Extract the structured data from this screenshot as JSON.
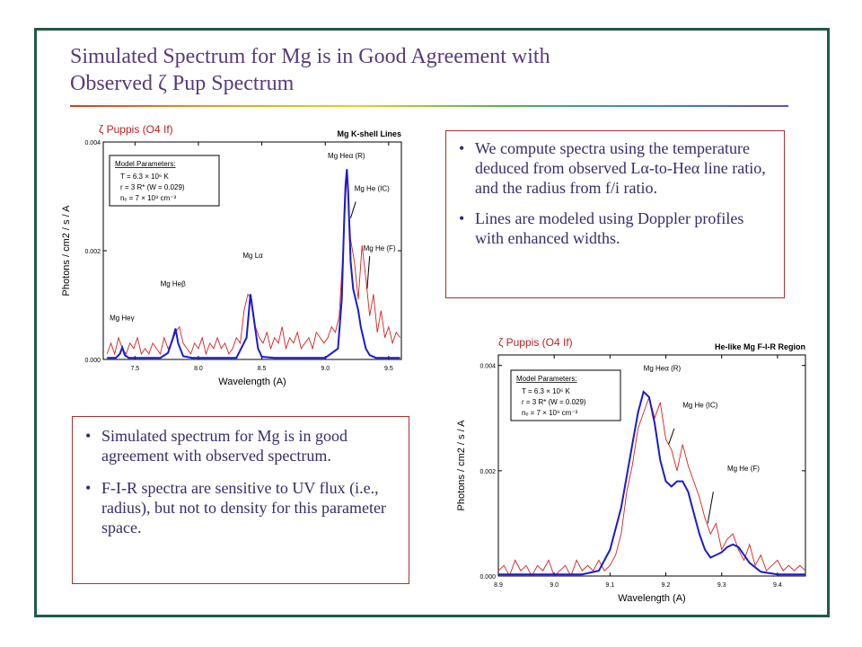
{
  "title": {
    "line1": "Simulated Spectrum for Mg is in Good Agreement with",
    "line2": "Observed ζ Pup Spectrum"
  },
  "text_box_1": {
    "bullets": [
      "We compute spectra using the temperature deduced from observed Lα-to-Heα line ratio, and the radius from f/i ratio.",
      "Lines are modeled using Doppler profiles with enhanced widths."
    ]
  },
  "text_box_2": {
    "bullets": [
      "Simulated spectrum for Mg is in good agreement with observed spectrum.",
      "F-I-R spectra are sensitive to UV flux (i.e., radius), but not to density for this parameter space."
    ]
  },
  "colors": {
    "frame": "#1f5a4a",
    "title": "#5a3a7a",
    "box_border": "#a83232",
    "observed": "#d42020",
    "simulated": "#1a1ad4",
    "annotation": "#d42020"
  },
  "chart_data": [
    {
      "type": "line",
      "title": "Mg K-shell Lines",
      "source_label": "ζ Puppis (O4 If)",
      "xlabel": "Wavelength (A)",
      "ylabel": "Photons / cm2 / s / A",
      "xlim": [
        7.25,
        9.6
      ],
      "ylim": [
        0,
        0.004
      ],
      "xticks": [
        "7.5",
        "8.0",
        "8.5",
        "9.0",
        "9.5"
      ],
      "yticks": [
        "0.000",
        "0.002",
        "0.004"
      ],
      "model_parameters": {
        "heading": "Model Parameters:",
        "lines": [
          "T = 6.3 × 10⁶ K",
          "r = 3 R*  (W = 0.029)",
          "nₑ = 7 × 10⁹ cm⁻³"
        ]
      },
      "line_labels": [
        {
          "text": "Mg Heγ",
          "x": 7.3,
          "y": 0.00072
        },
        {
          "text": "Mg Heβ",
          "x": 7.7,
          "y": 0.00135
        },
        {
          "text": "Mg Lα",
          "x": 8.35,
          "y": 0.00187
        },
        {
          "text": "Mg Heα (R)",
          "x": 9.02,
          "y": 0.0037
        },
        {
          "text": "Mg He (IC)",
          "x": 9.23,
          "y": 0.0031
        },
        {
          "text": "Mg He (F)",
          "x": 9.3,
          "y": 0.002
        }
      ],
      "series": [
        {
          "name": "observed",
          "x": [
            7.28,
            7.31,
            7.34,
            7.37,
            7.4,
            7.43,
            7.46,
            7.49,
            7.52,
            7.55,
            7.58,
            7.61,
            7.64,
            7.67,
            7.7,
            7.73,
            7.76,
            7.79,
            7.82,
            7.85,
            7.88,
            7.91,
            7.94,
            7.97,
            8.0,
            8.03,
            8.06,
            8.09,
            8.12,
            8.15,
            8.18,
            8.21,
            8.24,
            8.27,
            8.3,
            8.33,
            8.36,
            8.39,
            8.42,
            8.45,
            8.48,
            8.51,
            8.54,
            8.57,
            8.6,
            8.63,
            8.66,
            8.69,
            8.72,
            8.75,
            8.78,
            8.81,
            8.84,
            8.87,
            8.9,
            8.93,
            8.96,
            8.99,
            9.02,
            9.05,
            9.08,
            9.11,
            9.14,
            9.17,
            9.2,
            9.23,
            9.26,
            9.29,
            9.32,
            9.35,
            9.38,
            9.41,
            9.44,
            9.47,
            9.5,
            9.53,
            9.56,
            9.59
          ],
          "y": [
            0.0001,
            0.0003,
            0.0001,
            0.0004,
            0.0002,
            0.0001,
            0.0003,
            0.0002,
            0.0004,
            0.0001,
            0.0002,
            0.0001,
            0.0003,
            0.0002,
            0.0001,
            0.0004,
            0.0002,
            0.0003,
            0.0005,
            0.0006,
            0.0003,
            0.0002,
            0.0001,
            0.0003,
            0.0002,
            0.0004,
            0.0001,
            0.0003,
            0.0002,
            0.0004,
            0.0002,
            0.0003,
            0.0001,
            0.0002,
            0.0004,
            0.0003,
            0.0009,
            0.0012,
            0.0011,
            0.0006,
            0.0004,
            0.0003,
            0.0005,
            0.0002,
            0.0004,
            0.0003,
            0.0006,
            0.0002,
            0.0004,
            0.0003,
            0.0005,
            0.0002,
            0.0003,
            0.0004,
            0.0002,
            0.0005,
            0.0004,
            0.0003,
            0.0004,
            0.0006,
            0.0005,
            0.0008,
            0.002,
            0.0034,
            0.0022,
            0.0018,
            0.0011,
            0.0021,
            0.0015,
            0.0008,
            0.0012,
            0.0005,
            0.0009,
            0.0004,
            0.0006,
            0.0003,
            0.0005,
            0.0004
          ]
        },
        {
          "name": "simulated",
          "x": [
            7.28,
            7.35,
            7.38,
            7.4,
            7.42,
            7.45,
            7.7,
            7.76,
            7.8,
            7.82,
            7.84,
            7.88,
            7.95,
            8.3,
            8.38,
            8.41,
            8.44,
            8.47,
            8.5,
            8.6,
            9.0,
            9.1,
            9.13,
            9.15,
            9.16,
            9.17,
            9.18,
            9.2,
            9.22,
            9.23,
            9.24,
            9.26,
            9.28,
            9.3,
            9.32,
            9.35,
            9.4,
            9.5,
            9.59
          ],
          "y": [
            3e-05,
            3e-05,
            0.0001,
            0.00022,
            8e-05,
            3e-05,
            3e-05,
            0.00012,
            0.0004,
            0.00057,
            0.0003,
            6e-05,
            3e-05,
            3e-05,
            0.0004,
            0.0012,
            0.0007,
            0.0002,
            5e-05,
            3e-05,
            3e-05,
            0.0002,
            0.0011,
            0.0026,
            0.0032,
            0.0035,
            0.0031,
            0.0018,
            0.0013,
            0.0012,
            0.0011,
            0.0009,
            0.0006,
            0.0004,
            0.0002,
            8e-05,
            3e-05,
            3e-05,
            3e-05
          ]
        }
      ]
    },
    {
      "type": "line",
      "title": "He-like Mg F-I-R Region",
      "source_label": "ζ Puppis (O4 If)",
      "xlabel": "Wavelength (A)",
      "ylabel": "Photons / cm2 / s / A",
      "xlim": [
        8.9,
        9.45
      ],
      "ylim": [
        0,
        0.0042
      ],
      "xticks": [
        "8.9",
        "9.0",
        "9.1",
        "9.2",
        "9.3",
        "9.4"
      ],
      "yticks": [
        "0.000",
        "0.002",
        "0.004"
      ],
      "model_parameters": {
        "heading": "Model Parameters:",
        "lines": [
          "T = 6.3 × 10⁶ K",
          "r = 3 R*  (W = 0.029)",
          "nₑ = 7 × 10⁹ cm⁻³"
        ]
      },
      "line_labels": [
        {
          "text": "Mg Heα (R)",
          "x": 9.16,
          "y": 0.0039
        },
        {
          "text": "Mg He (IC)",
          "x": 9.23,
          "y": 0.0032
        },
        {
          "text": "Mg He (F)",
          "x": 9.31,
          "y": 0.002
        }
      ],
      "series": [
        {
          "name": "observed",
          "x": [
            8.9,
            8.91,
            8.92,
            8.93,
            8.94,
            8.95,
            8.96,
            8.97,
            8.98,
            8.99,
            9.0,
            9.01,
            9.02,
            9.03,
            9.04,
            9.05,
            9.06,
            9.07,
            9.08,
            9.09,
            9.1,
            9.11,
            9.12,
            9.13,
            9.14,
            9.15,
            9.16,
            9.17,
            9.18,
            9.19,
            9.2,
            9.21,
            9.22,
            9.23,
            9.24,
            9.25,
            9.26,
            9.27,
            9.28,
            9.29,
            9.3,
            9.31,
            9.32,
            9.33,
            9.34,
            9.35,
            9.36,
            9.37,
            9.38,
            9.39,
            9.4,
            9.41,
            9.42,
            9.43,
            9.44,
            9.45
          ],
          "y": [
            0.0001,
            0.0002,
            0.0,
            0.0003,
            0.0001,
            0.0002,
            0.0,
            0.0002,
            0.0001,
            0.0003,
            0.0,
            0.0001,
            0.0002,
            0.0,
            0.0003,
            0.0001,
            0.0002,
            0.0001,
            0.0003,
            0.0001,
            0.0002,
            0.0004,
            0.0008,
            0.0016,
            0.0021,
            0.0028,
            0.0031,
            0.0034,
            0.003,
            0.0033,
            0.0026,
            0.0024,
            0.002,
            0.0025,
            0.0021,
            0.0018,
            0.0015,
            0.0011,
            0.0008,
            0.001,
            0.0005,
            0.0007,
            0.0008,
            0.0005,
            0.0003,
            0.0006,
            0.0002,
            0.0004,
            0.0001,
            0.0002,
            0.0003,
            0.0001,
            0.0002,
            0.0001,
            0.0002,
            0.0001
          ]
        },
        {
          "name": "simulated",
          "x": [
            8.9,
            9.05,
            9.08,
            9.1,
            9.12,
            9.14,
            9.15,
            9.16,
            9.17,
            9.18,
            9.19,
            9.2,
            9.21,
            9.22,
            9.23,
            9.24,
            9.25,
            9.26,
            9.27,
            9.28,
            9.29,
            9.3,
            9.31,
            9.32,
            9.33,
            9.34,
            9.35,
            9.37,
            9.4,
            9.45
          ],
          "y": [
            3e-05,
            3e-05,
            0.0001,
            0.0005,
            0.0013,
            0.0025,
            0.0031,
            0.0035,
            0.0034,
            0.0029,
            0.0022,
            0.0018,
            0.0017,
            0.0018,
            0.0018,
            0.0016,
            0.0012,
            0.0008,
            0.0005,
            0.00035,
            0.0004,
            0.00045,
            0.00055,
            0.0006,
            0.00055,
            0.0004,
            0.00025,
            8e-05,
            3e-05,
            3e-05
          ]
        }
      ]
    }
  ]
}
